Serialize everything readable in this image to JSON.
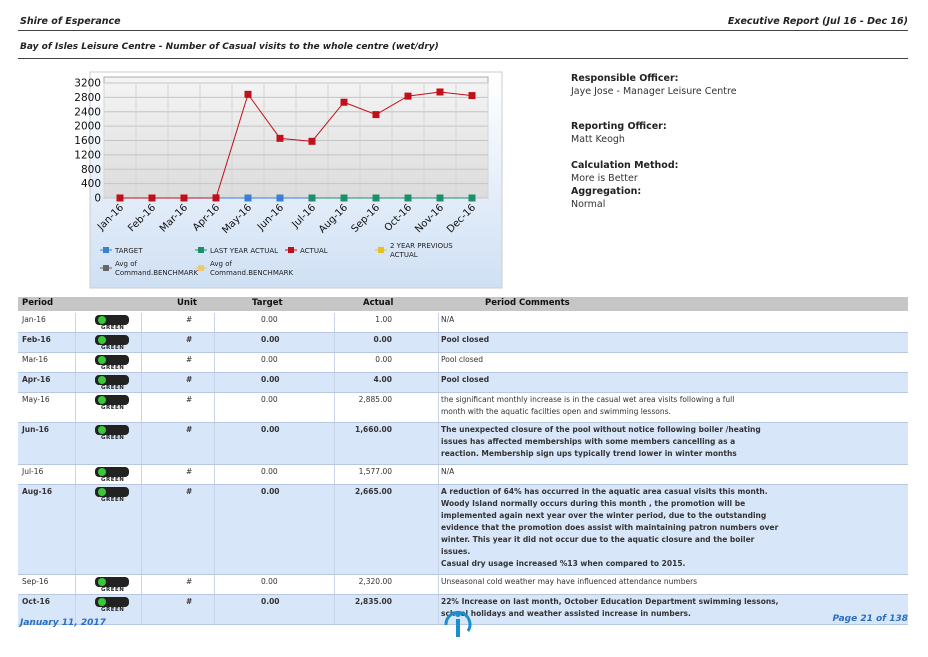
{
  "header": {
    "org": "Shire of Esperance",
    "report": "Executive Report (Jul 16 - Dec 16)",
    "subtitle": "Bay of Isles Leisure Centre - Number of Casual visits to the whole centre (wet/dry)"
  },
  "chart_data": {
    "type": "line",
    "categories": [
      "Jan-16",
      "Feb-16",
      "Mar-16",
      "Apr-16",
      "May-16",
      "Jun-16",
      "Jul-16",
      "Aug-16",
      "Sep-16",
      "Oct-16",
      "Nov-16",
      "Dec-16"
    ],
    "ylim": [
      0,
      3200
    ],
    "yticks": [
      0,
      400,
      800,
      1200,
      1600,
      2000,
      2400,
      2800,
      3200
    ],
    "grid": true,
    "series": [
      {
        "name": "TARGET",
        "color": "#3a7fd5",
        "values": [
          0,
          0,
          0,
          0,
          0,
          0,
          0,
          0,
          0,
          0,
          0,
          0
        ]
      },
      {
        "name": "LAST YEAR ACTUAL",
        "color": "#1f8f6a",
        "values": [
          null,
          null,
          null,
          null,
          null,
          null,
          0,
          0,
          0,
          0,
          0,
          0
        ]
      },
      {
        "name": "ACTUAL",
        "color": "#c0101a",
        "values": [
          1,
          0,
          0,
          4,
          2885,
          1660,
          1577,
          2665,
          2320,
          2835,
          2950,
          2850
        ]
      },
      {
        "name": "2 YEAR PREVIOUS ACTUAL",
        "color": "#e8c020",
        "values": [
          null,
          null,
          null,
          null,
          null,
          null,
          null,
          null,
          null,
          null,
          null,
          null
        ]
      },
      {
        "name": "Avg of Command.BENCHMARK",
        "color": "#666666",
        "values": [
          null,
          null,
          null,
          null,
          null,
          null,
          null,
          null,
          null,
          null,
          null,
          null
        ]
      },
      {
        "name": "Avg of Command.BENCHMARK",
        "color": "#f0c870",
        "values": [
          null,
          null,
          null,
          null,
          null,
          null,
          null,
          null,
          null,
          null,
          null,
          null
        ]
      }
    ]
  },
  "info": [
    {
      "label": "Responsible Officer:",
      "value": "Jaye Jose - Manager Leisure Centre"
    },
    {
      "label": "Reporting Officer:",
      "value": "Matt Keogh"
    },
    {
      "label": "Calculation Method:",
      "value": "More is Better"
    },
    {
      "label": "Aggregation:",
      "value": "Normal"
    }
  ],
  "table": {
    "columns": [
      "Period",
      "Unit",
      "Target",
      "Actual",
      "Period Comments"
    ],
    "rows": [
      {
        "period": "Jan-16",
        "status": "GREEN",
        "unit": "#",
        "target": "0.00",
        "actual": "1.00",
        "comments": [
          "N/A"
        ]
      },
      {
        "period": "Feb-16",
        "status": "GREEN",
        "unit": "#",
        "target": "0.00",
        "actual": "0.00",
        "comments": [
          "Pool closed"
        ]
      },
      {
        "period": "Mar-16",
        "status": "GREEN",
        "unit": "#",
        "target": "0.00",
        "actual": "0.00",
        "comments": [
          "Pool closed"
        ]
      },
      {
        "period": "Apr-16",
        "status": "GREEN",
        "unit": "#",
        "target": "0.00",
        "actual": "4.00",
        "comments": [
          "Pool closed"
        ]
      },
      {
        "period": "May-16",
        "status": "GREEN",
        "unit": "#",
        "target": "0.00",
        "actual": "2,885.00",
        "comments": [
          "the significant monthly increase is in the casual  wet area visits following a full",
          "month with  the aquatic facilties open and swimming lessons."
        ]
      },
      {
        "period": "Jun-16",
        "status": "GREEN",
        "unit": "#",
        "target": "0.00",
        "actual": "1,660.00",
        "comments": [
          "The unexpected closure of the pool without notice following boiler /heating",
          "issues has affected memberships with some members cancelling as a",
          "reaction. Membership sign ups typically trend lower in winter months"
        ]
      },
      {
        "period": "Jul-16",
        "status": "GREEN",
        "unit": "#",
        "target": "0.00",
        "actual": "1,577.00",
        "comments": [
          "N/A"
        ]
      },
      {
        "period": "Aug-16",
        "status": "GREEN",
        "unit": "#",
        "target": "0.00",
        "actual": "2,665.00",
        "comments": [
          "A reduction of 64% has occurred in the aquatic area casual visits this month.",
          "Woody Island normally occurs during this month , the promotion will be",
          "implemented again next year over the winter period, due to the outstanding",
          "evidence that the promotion does assist with maintaining patron numbers over",
          "winter. This year it did not occur due to the aquatic closure and the boiler",
          "issues.",
          "Casual dry usage increased %13 when compared to 2015."
        ]
      },
      {
        "period": "Sep-16",
        "status": "GREEN",
        "unit": "#",
        "target": "0.00",
        "actual": "2,320.00",
        "comments": [
          "Unseasonal cold weather may have influenced attendance numbers"
        ]
      },
      {
        "period": "Oct-16",
        "status": "GREEN",
        "unit": "#",
        "target": "0.00",
        "actual": "2,835.00",
        "comments": [
          "22% Increase on last month, October Education Department swimming lessons,",
          "school holidays  and weather assisted increase in numbers."
        ]
      }
    ]
  },
  "footer": {
    "date": "January 11, 2017",
    "page": "Page 21 of 138"
  }
}
